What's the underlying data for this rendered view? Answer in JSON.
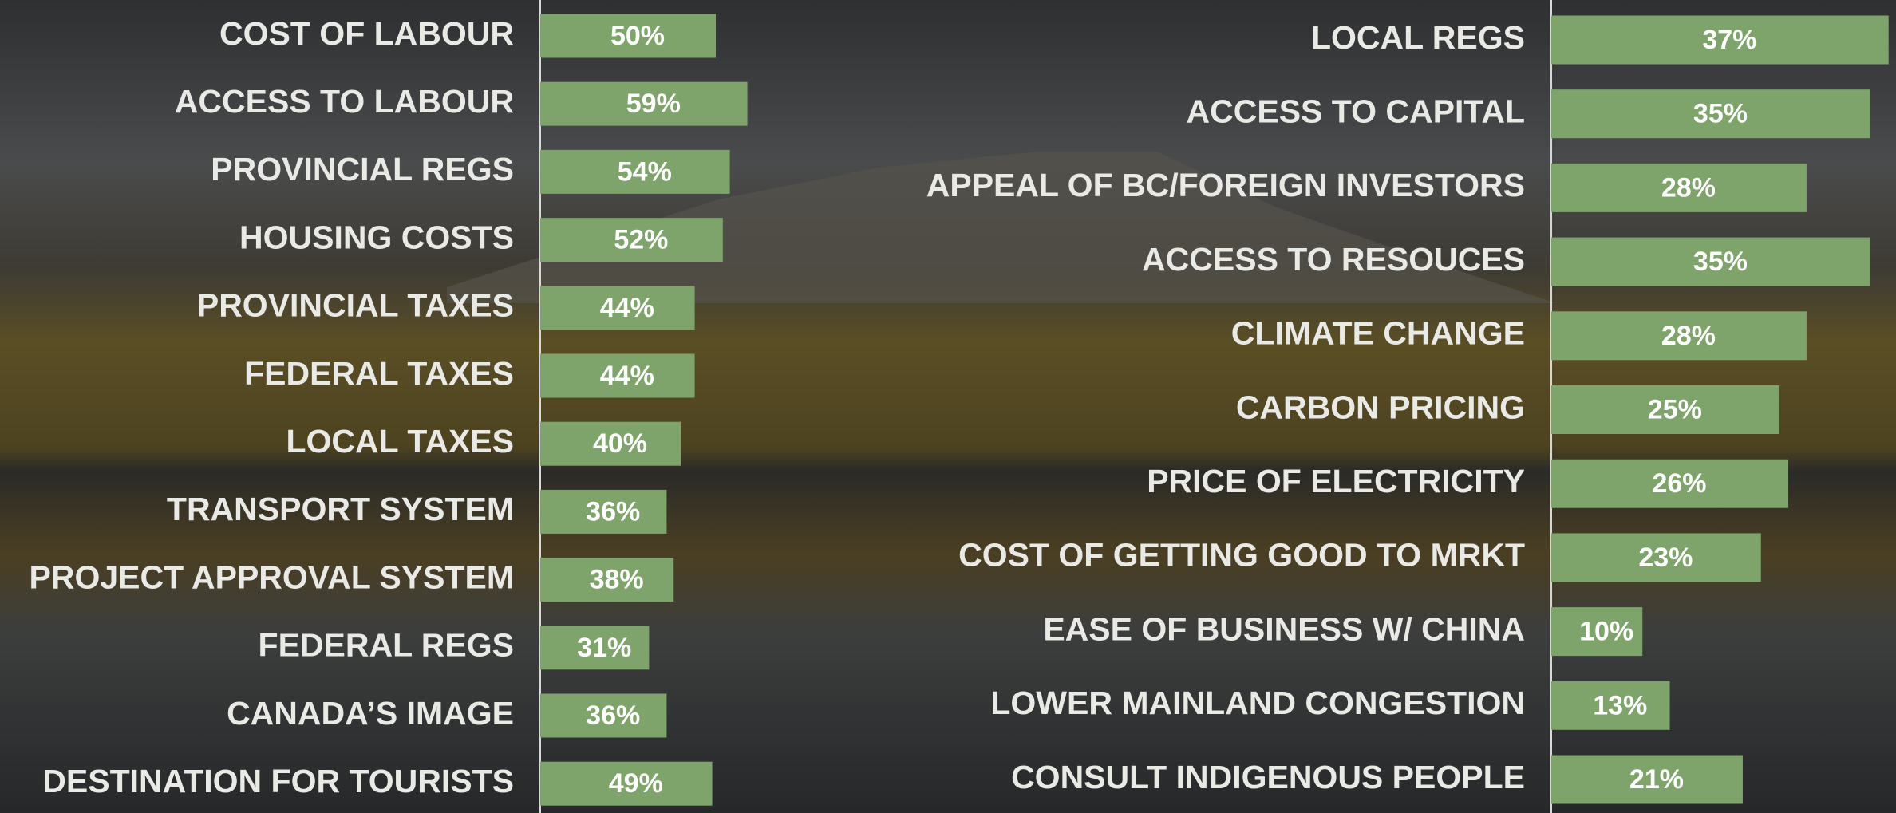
{
  "chart_data": [
    {
      "type": "bar",
      "orientation": "horizontal",
      "color": "#7ea36b",
      "categories": [
        "COST OF LABOUR",
        "ACCESS TO LABOUR",
        "PROVINCIAL REGS",
        "HOUSING COSTS",
        "PROVINCIAL TAXES",
        "FEDERAL TAXES",
        "LOCAL TAXES",
        "TRANSPORT SYSTEM",
        "PROJECT APPROVAL SYSTEM",
        "FEDERAL REGS",
        "CANADA’S IMAGE",
        "DESTINATION FOR TOURISTS"
      ],
      "values": [
        50,
        59,
        54,
        52,
        44,
        44,
        40,
        36,
        38,
        31,
        36,
        49
      ],
      "value_labels": [
        "50%",
        "59%",
        "54%",
        "52%",
        "44%",
        "44%",
        "40%",
        "36%",
        "38%",
        "31%",
        "36%",
        "49%"
      ],
      "xlim": [
        0,
        100
      ]
    },
    {
      "type": "bar",
      "orientation": "horizontal",
      "color": "#7ea36b",
      "categories": [
        "LOCAL REGS",
        "ACCESS TO CAPITAL",
        "APPEAL OF BC/FOREIGN INVESTORS",
        "ACCESS TO RESOUCES",
        "CLIMATE CHANGE",
        "CARBON PRICING",
        "PRICE OF ELECTRICITY",
        "COST OF GETTING GOOD TO MRKT",
        "EASE OF BUSINESS W/ CHINA",
        "LOWER MAINLAND CONGESTION",
        "CONSULT INDIGENOUS PEOPLE"
      ],
      "values": [
        37,
        35,
        28,
        35,
        28,
        25,
        26,
        23,
        10,
        13,
        21
      ],
      "value_labels": [
        "37%",
        "35%",
        "28%",
        "35%",
        "28%",
        "25%",
        "26%",
        "23%",
        "10%",
        "13%",
        "21%"
      ],
      "xlim": [
        0,
        40
      ]
    }
  ]
}
